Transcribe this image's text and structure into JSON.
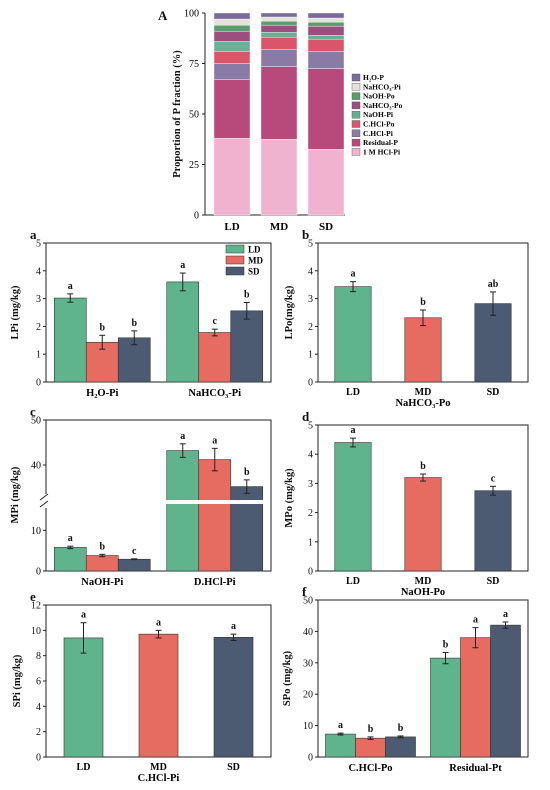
{
  "colors": {
    "LD": "#5fb48d",
    "MD": "#e66b61",
    "SD": "#4d5b72",
    "stack": [
      "#f0b3cf",
      "#b84a7b",
      "#8a7aa6",
      "#d9566a",
      "#6aaf95",
      "#9c4f7e",
      "#5a9d6d",
      "#e2e2d8",
      "#7b6a9b"
    ]
  },
  "chart_data": [
    {
      "id": "A",
      "type": "stacked-bar",
      "panel_label": "A",
      "categories": [
        "LD",
        "MD",
        "SD"
      ],
      "ylabel": "Proportion of P fraction (%)",
      "ylim": [
        0,
        100
      ],
      "yticks": [
        "0",
        "25",
        "50",
        "75",
        "100"
      ],
      "series": [
        {
          "name": "1 M HCl-Pi",
          "values": [
            38,
            37.5,
            32.5
          ]
        },
        {
          "name": "Residual-P",
          "values": [
            29,
            36,
            40
          ]
        },
        {
          "name": "C.HCl-Pi",
          "values": [
            8,
            8.5,
            8.5
          ]
        },
        {
          "name": "C.HCl-Po",
          "values": [
            6,
            6,
            6
          ]
        },
        {
          "name": "NaOH-Pi",
          "values": [
            5,
            2.5,
            2
          ]
        },
        {
          "name": "NaHCO3-Po",
          "values": [
            5,
            3.5,
            4.5
          ]
        },
        {
          "name": "NaOH-Po",
          "values": [
            3,
            2,
            2
          ]
        },
        {
          "name": "NaHCO3-Pi",
          "values": [
            3,
            2,
            2
          ]
        },
        {
          "name": "H2O-P",
          "values": [
            3,
            2,
            2.5
          ]
        }
      ],
      "legend_order": [
        "H₂O-P",
        "NaHCO₃-Pi",
        "NaOH-Po",
        "NaHCO₃-Po",
        "NaOH-Pi",
        "C.HCl-Po",
        "C.HCl-Pi",
        "Residual-P",
        "1 M HCl-Pi"
      ]
    },
    {
      "id": "a",
      "type": "bar",
      "panel_label": "a",
      "ylabel": "LPi (mg/kg)",
      "ylim": [
        0,
        5
      ],
      "yticks": [
        "0",
        "1",
        "2",
        "3",
        "4",
        "5"
      ],
      "groups": [
        "H₂O-Pi",
        "NaHCO₃-Pi"
      ],
      "series_names": [
        "LD",
        "MD",
        "SD"
      ],
      "values": [
        [
          3.02,
          1.43,
          1.59
        ],
        [
          3.6,
          1.78,
          2.56
        ]
      ],
      "errors": [
        [
          0.15,
          0.25,
          0.25
        ],
        [
          0.32,
          0.12,
          0.3
        ]
      ],
      "letters": [
        [
          "a",
          "b",
          "b"
        ],
        [
          "a",
          "c",
          "b"
        ]
      ],
      "legend": [
        "LD",
        "MD",
        "SD"
      ]
    },
    {
      "id": "b",
      "type": "bar",
      "panel_label": "b",
      "ylabel": "LPo(mg/kg)",
      "ylim": [
        0,
        5
      ],
      "yticks": [
        "0",
        "1",
        "2",
        "3",
        "4",
        "5"
      ],
      "categories": [
        "LD",
        "MD",
        "SD"
      ],
      "xlabel": "NaHCO₃-Po",
      "values": [
        3.43,
        2.31,
        2.82
      ],
      "errors": [
        0.18,
        0.28,
        0.42
      ],
      "letters": [
        "a",
        "b",
        "ab"
      ]
    },
    {
      "id": "c",
      "type": "bar",
      "panel_label": "c",
      "ylabel": "MPi (mg/kg)",
      "broken_axis": true,
      "yticks_lower": [
        "0",
        "10"
      ],
      "yticks_upper": [
        "40",
        "50"
      ],
      "groups": [
        "NaOH-Pi",
        "D.HCl-Pi"
      ],
      "series_names": [
        "LD",
        "MD",
        "SD"
      ],
      "values": [
        [
          5.8,
          3.8,
          2.9
        ],
        [
          43.2,
          41.2,
          35.2
        ]
      ],
      "errors": [
        [
          0.3,
          0.3,
          0.1
        ],
        [
          1.5,
          2.5,
          1.5
        ]
      ],
      "letters": [
        [
          "a",
          "b",
          "c"
        ],
        [
          "a",
          "a",
          "b"
        ]
      ]
    },
    {
      "id": "d",
      "type": "bar",
      "panel_label": "d",
      "ylabel": "MPo (mg/kg)",
      "ylim": [
        0,
        5
      ],
      "yticks": [
        "0",
        "1",
        "2",
        "3",
        "4",
        "5"
      ],
      "categories": [
        "LD",
        "MD",
        "SD"
      ],
      "xlabel": "NaOH-Po",
      "values": [
        4.4,
        3.2,
        2.75
      ],
      "errors": [
        0.15,
        0.12,
        0.15
      ],
      "letters": [
        "a",
        "b",
        "c"
      ]
    },
    {
      "id": "e",
      "type": "bar",
      "panel_label": "e",
      "ylabel": "SPi (mg/kg)",
      "ylim": [
        0,
        12
      ],
      "yticks": [
        "0",
        "2",
        "4",
        "6",
        "8",
        "10",
        "12"
      ],
      "categories": [
        "LD",
        "MD",
        "SD"
      ],
      "xlabel": "C.HCl-Pi",
      "values": [
        9.4,
        9.7,
        9.45
      ],
      "errors": [
        1.2,
        0.3,
        0.25
      ],
      "letters": [
        "a",
        "a",
        "a"
      ]
    },
    {
      "id": "f",
      "type": "bar",
      "panel_label": "f",
      "ylabel": "SPo (mg/kg)",
      "ylim": [
        0,
        50
      ],
      "yticks": [
        "0",
        "10",
        "20",
        "30",
        "40",
        "50"
      ],
      "groups": [
        "C.HCl-Po",
        "Residual-Pt"
      ],
      "series_names": [
        "LD",
        "MD",
        "SD"
      ],
      "values": [
        [
          7.3,
          6.0,
          6.4
        ],
        [
          31.5,
          38.0,
          42.0
        ]
      ],
      "errors": [
        [
          0.3,
          0.4,
          0.3
        ],
        [
          1.8,
          3.2,
          1.0
        ]
      ],
      "letters": [
        [
          "a",
          "b",
          "b"
        ],
        [
          "b",
          "a",
          "a"
        ]
      ]
    }
  ]
}
